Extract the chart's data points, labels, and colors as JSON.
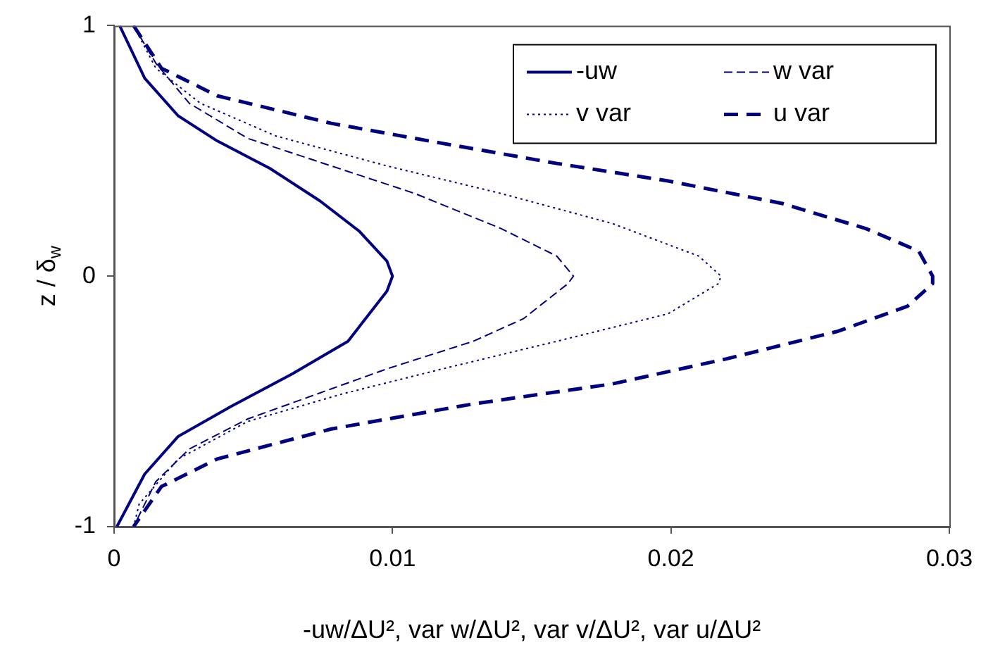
{
  "chart_data": {
    "type": "line",
    "xlabel": "-uw/ΔU², var w/ΔU², var v/ΔU², var u/ΔU²",
    "ylabel": "z / δ$_{w}$",
    "xlim": [
      0,
      0.03
    ],
    "xticks": [
      0,
      0.01,
      0.02,
      0.03
    ],
    "ylim": [
      -1,
      1
    ],
    "yticks": [
      -1,
      0,
      1
    ],
    "grid": false,
    "legend": "top right",
    "series": [
      {
        "name": "-uw",
        "color": "#000080",
        "line_style": "solid",
        "x": [
          0.0002,
          0.0011,
          0.0023,
          0.0037,
          0.0056,
          0.0074,
          0.0088,
          0.0098,
          0.01,
          0.0098,
          0.0084,
          0.0064,
          0.0042,
          0.0023,
          0.0011,
          0.0001
        ],
        "values": [
          1,
          0.79,
          0.64,
          0.54,
          0.43,
          0.3,
          0.18,
          0.06,
          0,
          -0.06,
          -0.26,
          -0.39,
          -0.52,
          -0.64,
          -0.79,
          -1
        ]
      },
      {
        "name": "w var",
        "color": "#000080",
        "line_style": "dashed",
        "x": [
          0.0007,
          0.0015,
          0.0027,
          0.0048,
          0.0078,
          0.0108,
          0.0139,
          0.0159,
          0.0165,
          0.0163,
          0.0147,
          0.0129,
          0.0098,
          0.0078,
          0.0048,
          0.0027,
          0.0015,
          0.0007
        ],
        "values": [
          1,
          0.85,
          0.69,
          0.55,
          0.44,
          0.33,
          0.19,
          0.08,
          0,
          -0.03,
          -0.17,
          -0.26,
          -0.37,
          -0.45,
          -0.57,
          -0.69,
          -0.82,
          -1
        ]
      },
      {
        "name": "v var",
        "color": "#000080",
        "line_style": "dotted",
        "x": [
          0.0007,
          0.0015,
          0.0031,
          0.0058,
          0.0098,
          0.0139,
          0.0179,
          0.021,
          0.0218,
          0.0217,
          0.0199,
          0.0159,
          0.0118,
          0.0082,
          0.0048,
          0.0023,
          0.0009,
          0.0007
        ],
        "values": [
          1,
          0.83,
          0.69,
          0.56,
          0.44,
          0.33,
          0.21,
          0.08,
          0,
          -0.03,
          -0.15,
          -0.26,
          -0.37,
          -0.47,
          -0.58,
          -0.73,
          -0.91,
          -1
        ]
      },
      {
        "name": "u var",
        "color": "#000080",
        "line_style": "dashed",
        "x": [
          0.0007,
          0.0017,
          0.0037,
          0.0078,
          0.0118,
          0.0159,
          0.0199,
          0.024,
          0.027,
          0.0289,
          0.0294,
          0.0294,
          0.0285,
          0.026,
          0.022,
          0.0179,
          0.0129,
          0.0078,
          0.0037,
          0.0017,
          0.0007
        ],
        "values": [
          1,
          0.83,
          0.72,
          0.61,
          0.53,
          0.45,
          0.38,
          0.29,
          0.19,
          0.1,
          0,
          -0.03,
          -0.12,
          -0.22,
          -0.33,
          -0.43,
          -0.51,
          -0.61,
          -0.73,
          -0.84,
          -1
        ]
      }
    ]
  }
}
